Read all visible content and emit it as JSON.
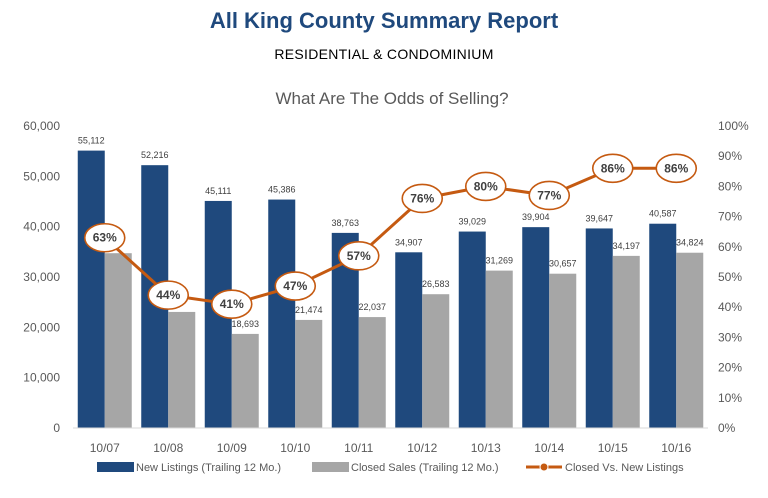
{
  "header": {
    "title": "All King County Summary Report",
    "subtitle": "RESIDENTIAL & CONDOMINIUM"
  },
  "chart_data": {
    "type": "bar",
    "title": "What Are The Odds of Selling?",
    "categories": [
      "10/07",
      "10/08",
      "10/09",
      "10/10",
      "10/11",
      "10/12",
      "10/13",
      "10/14",
      "10/15",
      "10/16"
    ],
    "series": [
      {
        "name": "New Listings (Trailing 12 Mo.)",
        "type": "bar",
        "axis": "left",
        "color": "#1f497d",
        "values": [
          55112,
          52216,
          45111,
          45386,
          38763,
          34907,
          39029,
          39904,
          39647,
          40587
        ],
        "labels": [
          "55,112",
          "52,216",
          "45,111",
          "45,386",
          "38,763",
          "34,907",
          "39,029",
          "39,904",
          "39,647",
          "40,587"
        ]
      },
      {
        "name": "Closed Sales (Trailing 12 Mo.)",
        "type": "bar",
        "axis": "left",
        "color": "#a6a6a6",
        "values": [
          34727,
          23060,
          18693,
          21474,
          22037,
          26583,
          31269,
          30657,
          34197,
          34824
        ],
        "labels": [
          "",
          "",
          "18,693",
          "21,474",
          "22,037",
          "26,583",
          "31,269",
          "30,657",
          "34,197",
          "34,824"
        ]
      },
      {
        "name": "Closed Vs. New Listings",
        "type": "line",
        "axis": "right",
        "color": "#c55a11",
        "values": [
          63,
          44,
          41,
          47,
          57,
          76,
          80,
          77,
          86,
          86
        ],
        "labels": [
          "63%",
          "44%",
          "41%",
          "47%",
          "57%",
          "76%",
          "80%",
          "77%",
          "86%",
          "86%"
        ]
      }
    ],
    "left_axis": {
      "min": 0,
      "max": 60000,
      "ticks": [
        0,
        10000,
        20000,
        30000,
        40000,
        50000,
        60000
      ],
      "tick_labels": [
        "0",
        "10,000",
        "20,000",
        "30,000",
        "40,000",
        "50,000",
        "60,000"
      ]
    },
    "right_axis": {
      "min": 0,
      "max": 100,
      "ticks": [
        0,
        10,
        20,
        30,
        40,
        50,
        60,
        70,
        80,
        90,
        100
      ],
      "tick_labels": [
        "0%",
        "10%",
        "20%",
        "30%",
        "40%",
        "50%",
        "60%",
        "70%",
        "80%",
        "90%",
        "100%"
      ]
    },
    "grid": false,
    "legend_position": "bottom"
  }
}
